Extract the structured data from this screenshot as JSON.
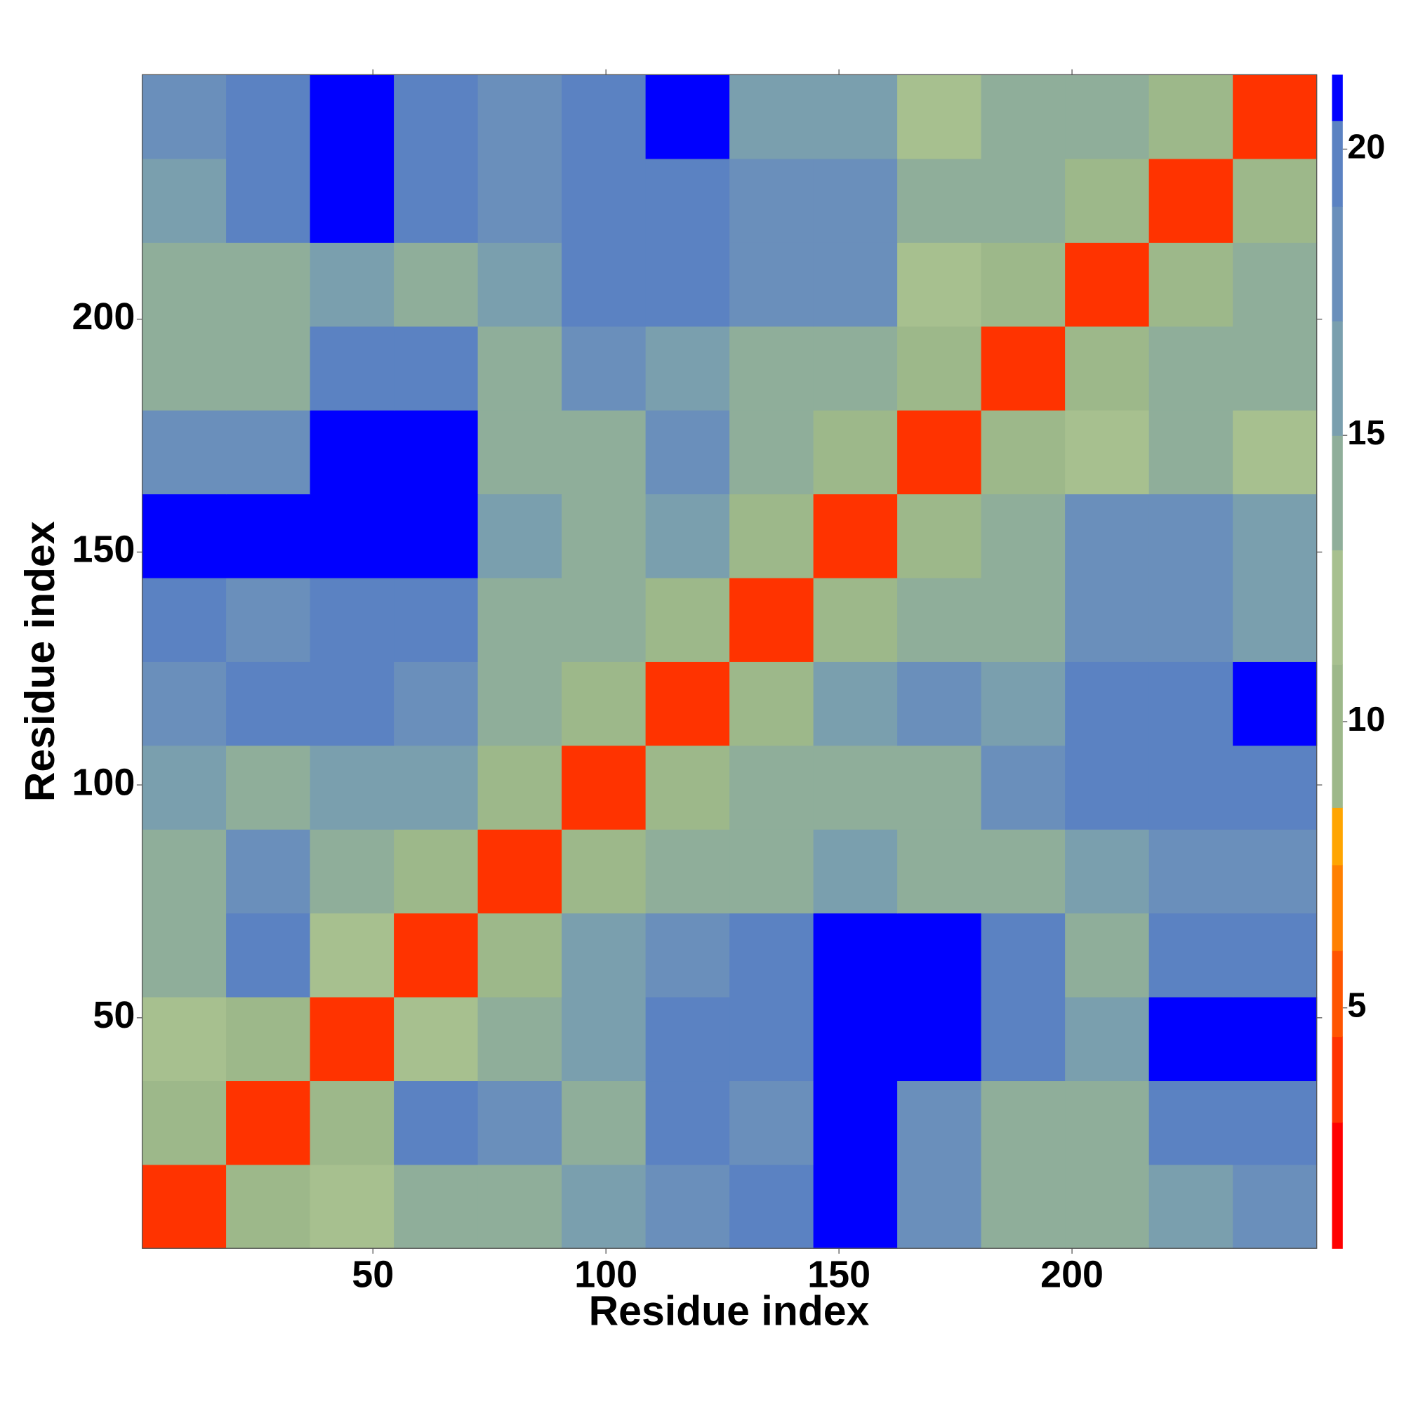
{
  "chart_data": {
    "type": "heatmap",
    "x_label": "Residue index",
    "y_label": "Residue index",
    "x_edges": [
      0.5,
      18.5,
      36.5,
      54.5,
      72.5,
      90.5,
      108.5,
      126.5,
      144.5,
      162.5,
      180.5,
      198.5,
      216.5,
      234.5,
      252.5
    ],
    "y_edges": [
      0.5,
      18.5,
      36.5,
      54.5,
      72.5,
      90.5,
      108.5,
      126.5,
      144.5,
      162.5,
      180.5,
      198.5,
      216.5,
      234.5,
      252.5
    ],
    "z": [
      [
        3,
        10,
        12,
        13,
        14,
        15,
        18,
        20,
        21,
        18,
        14,
        13,
        16,
        18
      ],
      [
        10,
        3,
        10,
        19,
        17,
        13,
        20,
        18,
        21,
        17,
        14,
        14,
        19,
        20
      ],
      [
        12,
        10,
        3,
        12,
        13,
        15,
        19,
        20,
        21,
        21,
        20,
        15,
        21,
        21
      ],
      [
        13,
        19,
        12,
        3,
        10,
        16,
        18,
        20,
        21,
        21,
        20,
        14,
        19,
        19
      ],
      [
        14,
        17,
        13,
        10,
        3,
        10,
        14,
        14,
        15,
        14,
        13,
        15,
        18,
        18
      ],
      [
        15,
        13,
        15,
        16,
        10,
        3,
        10,
        13,
        13,
        14,
        18,
        19,
        20,
        19
      ],
      [
        18,
        20,
        19,
        18,
        14,
        10,
        3,
        10,
        16,
        17,
        15,
        19,
        20,
        21
      ],
      [
        20,
        18,
        20,
        20,
        14,
        13,
        10,
        3,
        10,
        14,
        13,
        18,
        18,
        16
      ],
      [
        21,
        21,
        21,
        21,
        15,
        13,
        16,
        10,
        3,
        10,
        13,
        17,
        17,
        15
      ],
      [
        18,
        17,
        21,
        21,
        14,
        14,
        17,
        14,
        10,
        3,
        10,
        12,
        13,
        11
      ],
      [
        14,
        14,
        20,
        20,
        13,
        18,
        15,
        13,
        13,
        10,
        3,
        9,
        13,
        14
      ],
      [
        13,
        14,
        15,
        14,
        15,
        19,
        19,
        18,
        17,
        12,
        9,
        3,
        9,
        14
      ],
      [
        16,
        19,
        21,
        19,
        18,
        20,
        20,
        18,
        17,
        13,
        13,
        9,
        3,
        10
      ],
      [
        18,
        20,
        21,
        19,
        18,
        19,
        21,
        16,
        15,
        11,
        14,
        14,
        10,
        3
      ]
    ],
    "xlim": [
      0.5,
      252.5
    ],
    "ylim": [
      0.5,
      252.5
    ],
    "xticks": [
      50,
      100,
      150,
      200
    ],
    "yticks": [
      50,
      100,
      150,
      200
    ],
    "clim": [
      0.8,
      21.3
    ],
    "cticks": [
      5,
      10,
      15,
      20
    ],
    "colorscale": [
      {
        "value": 0.8,
        "color": "#ff0000"
      },
      {
        "value": 3,
        "color": "#ff3300"
      },
      {
        "value": 4.5,
        "color": "#ff5500"
      },
      {
        "value": 6,
        "color": "#ff8000"
      },
      {
        "value": 7.5,
        "color": "#ffa500"
      },
      {
        "value": 8.5,
        "color": "#9db88a"
      },
      {
        "value": 11,
        "color": "#a7c08f"
      },
      {
        "value": 13,
        "color": "#8fae9a"
      },
      {
        "value": 15,
        "color": "#7a9fae"
      },
      {
        "value": 17,
        "color": "#6a8fbb"
      },
      {
        "value": 19,
        "color": "#5b82c2"
      },
      {
        "value": 20.5,
        "color": "#0000ff"
      }
    ]
  }
}
